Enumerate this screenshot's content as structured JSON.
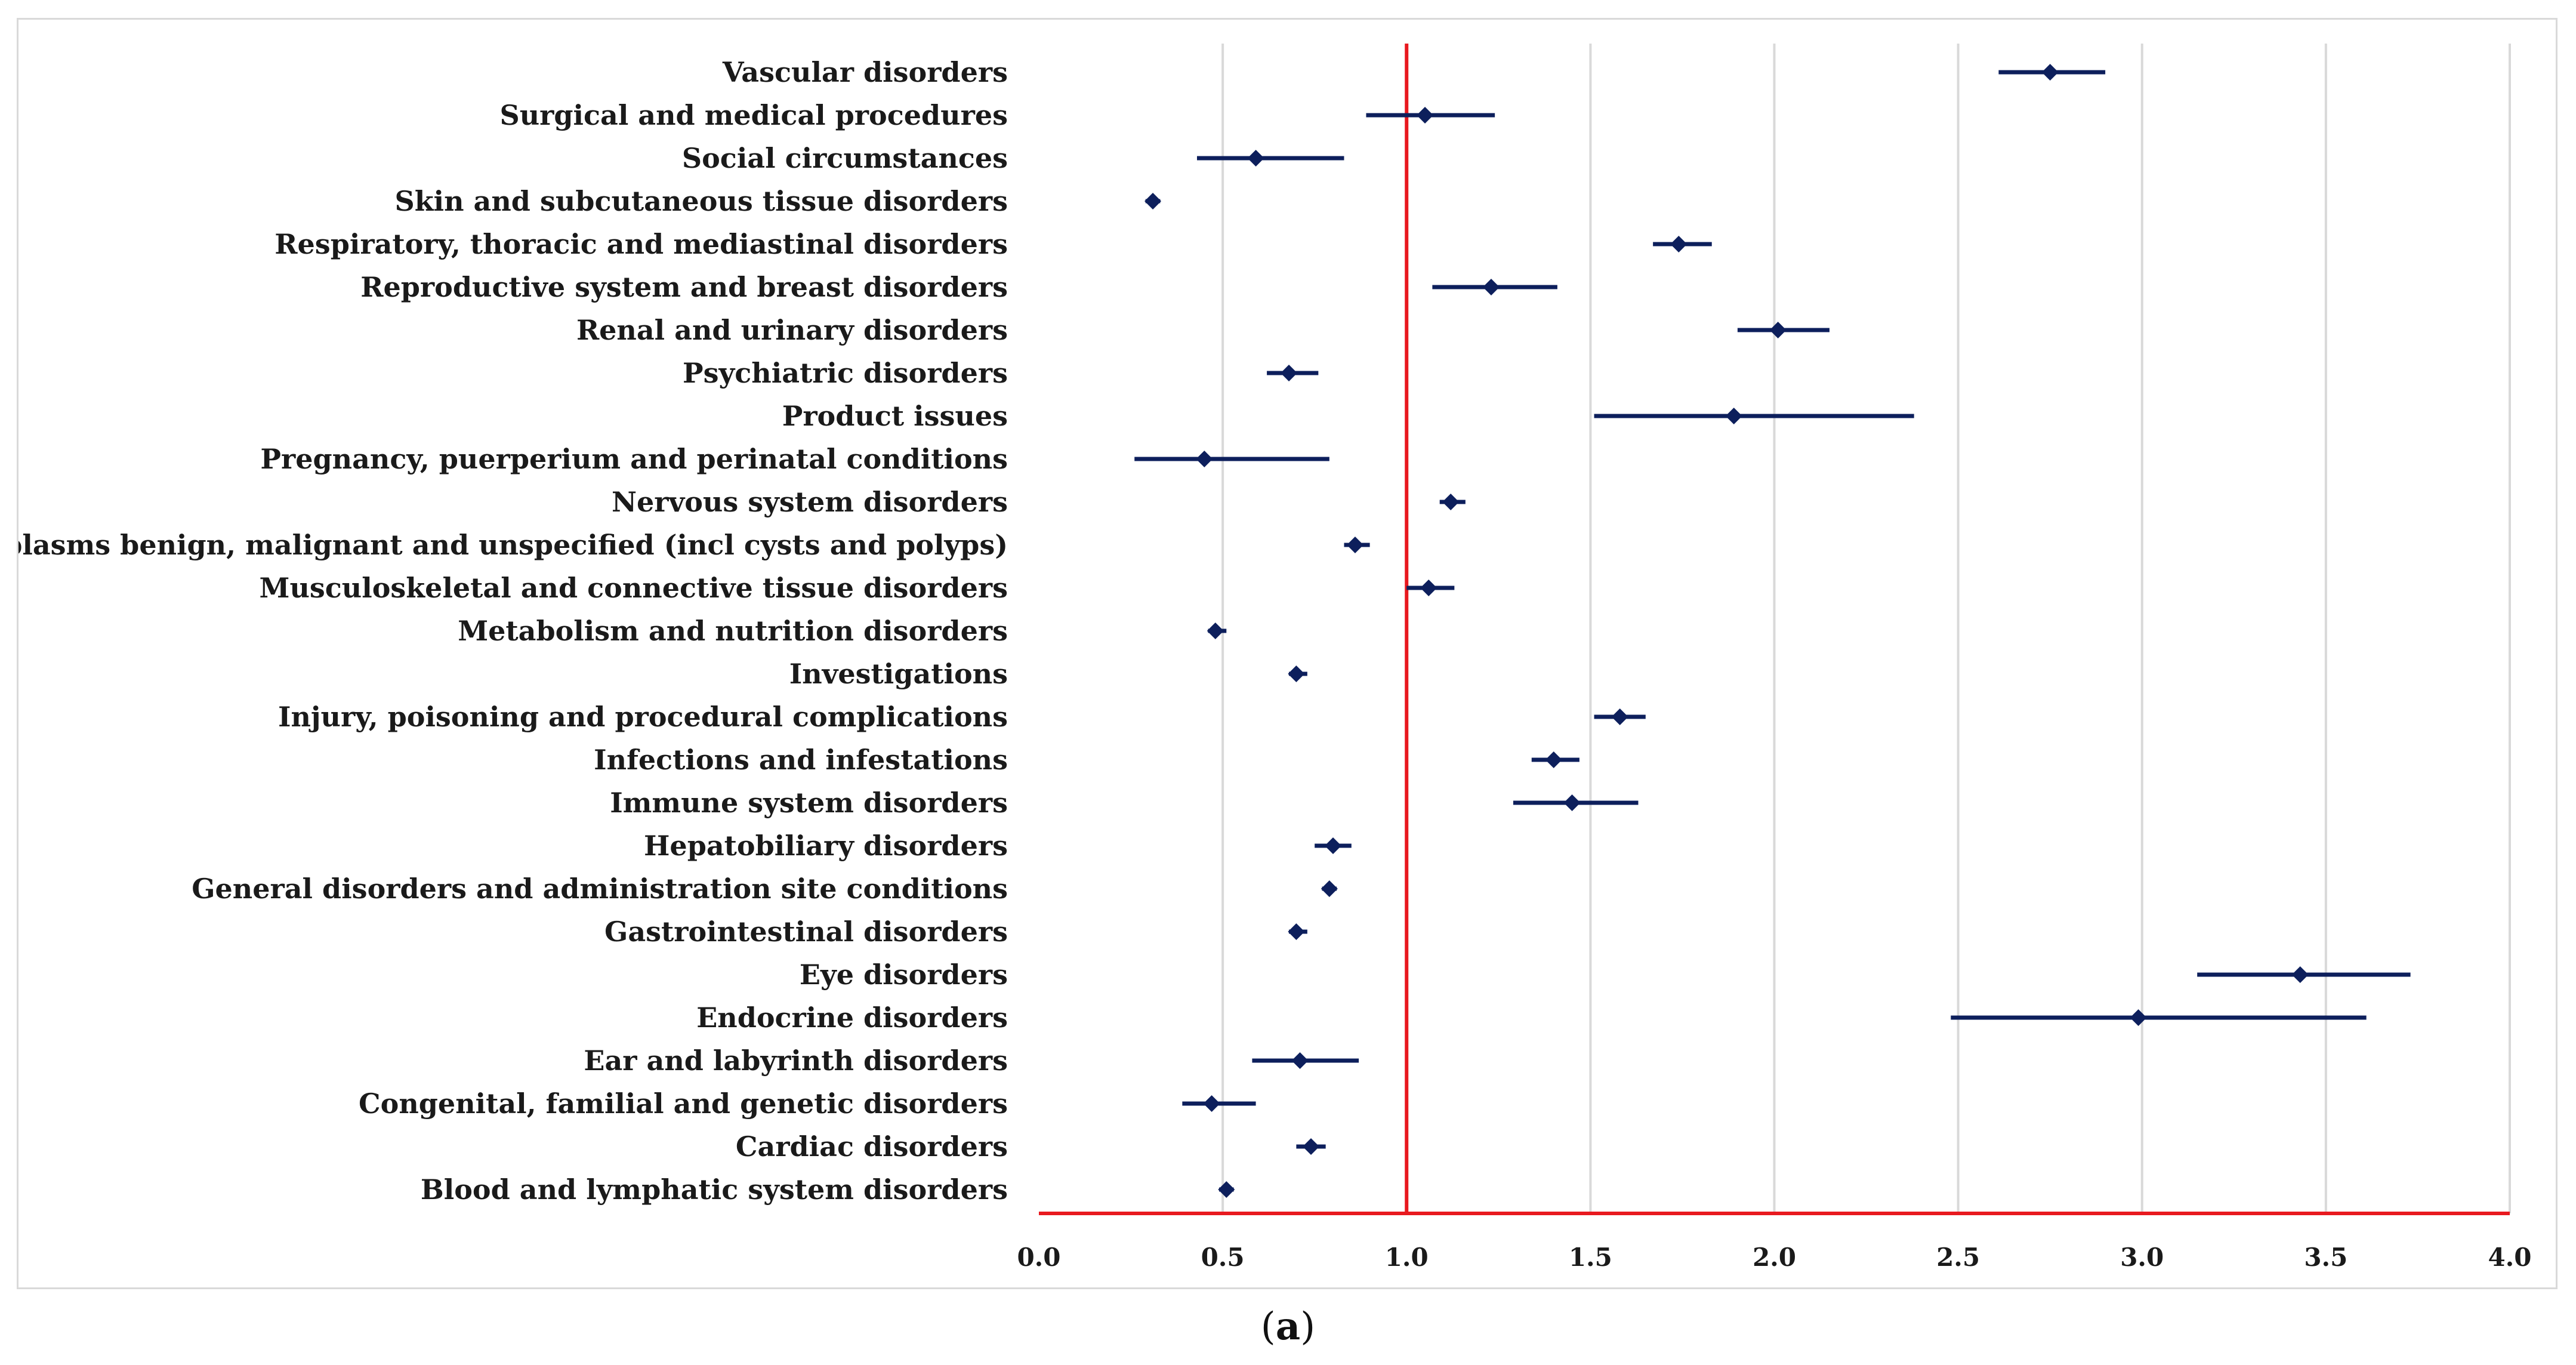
{
  "caption": {
    "open": "(",
    "letter": "a",
    "close": ")"
  },
  "chart_data": {
    "type": "scatter",
    "orientation": "horizontal-forest",
    "xlim": [
      0.0,
      4.0
    ],
    "xticks": [
      "0.0",
      "0.5",
      "1.0",
      "1.5",
      "2.0",
      "2.5",
      "3.0",
      "3.5",
      "4.0"
    ],
    "xtick_values": [
      0.0,
      0.5,
      1.0,
      1.5,
      2.0,
      2.5,
      3.0,
      3.5,
      4.0
    ],
    "reference_line": 1.0,
    "grid": "vertical",
    "colors": {
      "marker": "#0d1f5c",
      "reference": "#e8191f",
      "grid": "#d9d9d9"
    },
    "categories": [
      "Vascular disorders",
      "Surgical and medical procedures",
      "Social circumstances",
      "Skin and subcutaneous tissue disorders",
      "Respiratory, thoracic and mediastinal disorders",
      "Reproductive system and breast disorders",
      "Renal and urinary disorders",
      "Psychiatric disorders",
      "Product issues",
      "Pregnancy, puerperium and perinatal conditions",
      "Nervous system disorders",
      "Neoplasms benign, malignant and unspecified (incl cysts and polyps)",
      "Musculoskeletal and connective tissue disorders",
      "Metabolism and nutrition disorders",
      "Investigations",
      "Injury, poisoning and procedural complications",
      "Infections and infestations",
      "Immune system disorders",
      "Hepatobiliary disorders",
      "General disorders and administration site conditions",
      "Gastrointestinal disorders",
      "Eye disorders",
      "Endocrine disorders",
      "Ear and labyrinth disorders",
      "Congenital, familial and genetic disorders",
      "Cardiac disorders",
      "Blood and lymphatic system disorders"
    ],
    "values": [
      2.75,
      1.05,
      0.59,
      0.31,
      1.74,
      1.23,
      2.01,
      0.68,
      1.89,
      0.45,
      1.12,
      0.86,
      1.06,
      0.48,
      0.7,
      1.58,
      1.4,
      1.45,
      0.8,
      0.79,
      0.7,
      3.43,
      2.99,
      0.71,
      0.47,
      0.74,
      0.51
    ],
    "lower": [
      2.61,
      0.89,
      0.43,
      0.29,
      1.67,
      1.07,
      1.9,
      0.62,
      1.51,
      0.26,
      1.09,
      0.83,
      1.0,
      0.46,
      0.68,
      1.51,
      1.34,
      1.29,
      0.75,
      0.77,
      0.68,
      3.15,
      2.48,
      0.58,
      0.39,
      0.7,
      0.49
    ],
    "upper": [
      2.9,
      1.24,
      0.83,
      0.33,
      1.83,
      1.41,
      2.15,
      0.76,
      2.38,
      0.79,
      1.16,
      0.9,
      1.13,
      0.51,
      0.73,
      1.65,
      1.47,
      1.63,
      0.85,
      0.81,
      0.73,
      3.73,
      3.61,
      0.87,
      0.59,
      0.78,
      0.53
    ]
  }
}
